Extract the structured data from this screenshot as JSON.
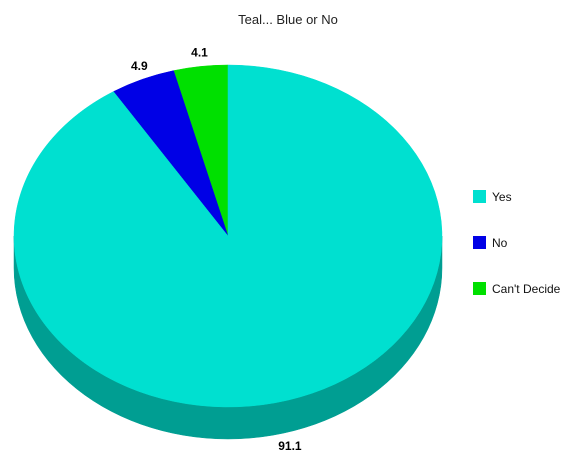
{
  "chart_data": {
    "type": "pie",
    "style": "3d",
    "title": "Teal... Blue or No",
    "categories": [
      "Yes",
      "No",
      "Can't Decide"
    ],
    "values": [
      91.1,
      4.9,
      4.1
    ],
    "value_labels": [
      "91.1",
      "4.9",
      "4.1"
    ],
    "colors": [
      "#00e0d0",
      "#0000e6",
      "#00e000"
    ],
    "side_colors": [
      "#009e92",
      "#0000a0",
      "#009e00"
    ],
    "legend_position": "right"
  }
}
